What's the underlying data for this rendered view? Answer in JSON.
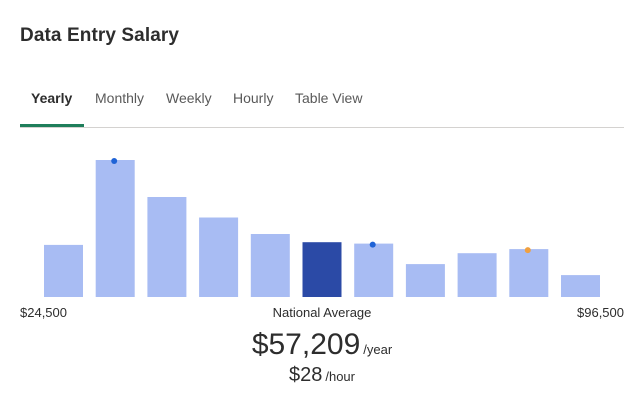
{
  "title": "Data Entry Salary",
  "tabs": [
    {
      "label": "Yearly",
      "active": true
    },
    {
      "label": "Monthly",
      "active": false
    },
    {
      "label": "Weekly",
      "active": false
    },
    {
      "label": "Hourly",
      "active": false
    },
    {
      "label": "Table View",
      "active": false
    }
  ],
  "chart_data": {
    "type": "bar",
    "values": [
      0.38,
      1.0,
      0.73,
      0.58,
      0.46,
      0.4,
      0.39,
      0.24,
      0.32,
      0.35,
      0.16
    ],
    "highlight_index": 5,
    "markers": [
      {
        "index": 1,
        "color": "#1f63d6"
      },
      {
        "index": 6,
        "color": "#1f63d6"
      },
      {
        "index": 9,
        "color": "#f0a040"
      }
    ],
    "min_label": "$24,500",
    "max_label": "$96,500",
    "center_label": "National Average"
  },
  "colors": {
    "bar": "#a8bcf3",
    "bar_highlight": "#2b4aa6",
    "tab_accent": "#1f7e5b"
  },
  "salary": {
    "yearly_value": "$57,209",
    "yearly_unit": "/year",
    "hourly_value": "$28",
    "hourly_unit": "/hour"
  }
}
